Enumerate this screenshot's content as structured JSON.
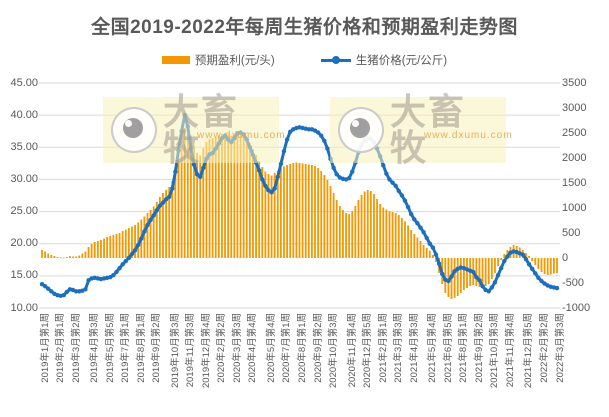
{
  "title": "全国2019-2022年每周生猪价格和预期盈利走势图",
  "legend": {
    "profit_label": "预期盈利(元/头)",
    "price_label": "生猪价格(元/公斤)"
  },
  "colors": {
    "bar_orange": "#F39800",
    "line_blue": "#1B6FBE",
    "text_gray": "#595959",
    "gridline": "#D9D9D9",
    "watermark_bg": "#F7F1B9"
  },
  "axes": {
    "left_ticks": [
      "45.00",
      "40.00",
      "35.00",
      "30.00",
      "25.00",
      "20.00",
      "15.00",
      "10.00"
    ],
    "right_ticks": [
      "3500",
      "3000",
      "2500",
      "2000",
      "1500",
      "1000",
      "500",
      "0",
      "-500",
      "-1000"
    ]
  },
  "watermark": {
    "brand": "大畜牧",
    "url": "www.dxumu.com"
  },
  "chart_data": {
    "type": "bar+line",
    "title": "全国2019-2022年每周生猪价格和预期盈利走势图",
    "x_axis": "周 (2019年1月第1周 — 2022年3月第3周)",
    "left_axis_label": "生猪价格(元/公斤)",
    "right_axis_label": "预期盈利(元/头)",
    "left_axis_range": [
      10,
      45
    ],
    "right_axis_range": [
      -1000,
      3500
    ],
    "grid": "horizontal",
    "legend_position": "top",
    "n_weeks": 167,
    "x_tick_labels": [
      "2019年1月第1周",
      "2019年2月第1周",
      "2019年3月第2周",
      "2019年4月第3周",
      "2019年5月第5周",
      "2019年7月第1周",
      "2019年8月第1周",
      "2019年9月第2周",
      "2019年10月第3周",
      "2019年11月第3周",
      "2019年12月第4周",
      "2020年2月第2周",
      "2020年3月第3周",
      "2020年4月第4周",
      "2020年5月第4周",
      "2020年7月第1周",
      "2020年8月第1周",
      "2020年9月第2周",
      "2020年10月第3周",
      "2020年11月第4周",
      "2020年12月第5周",
      "2021年2月第1周",
      "2021年3月第3周",
      "2021年4月第3周",
      "2021年5月第4周",
      "2021年6月第5周",
      "2021年8月第1周",
      "2021年9月第2周",
      "2021年10月第3周",
      "2021年11月第4周",
      "2021年12月第5周",
      "2022年2月第2周",
      "2022年3月第3周"
    ],
    "series": [
      {
        "name": "预期盈利(元/头)",
        "type": "bar",
        "axis": "right",
        "values": [
          160,
          130,
          90,
          60,
          40,
          20,
          10,
          10,
          20,
          40,
          30,
          30,
          50,
          90,
          130,
          220,
          280,
          320,
          340,
          360,
          390,
          420,
          440,
          460,
          480,
          500,
          540,
          570,
          600,
          630,
          660,
          710,
          770,
          830,
          900,
          960,
          1030,
          1120,
          1220,
          1300,
          1360,
          1420,
          1540,
          1700,
          1950,
          2250,
          2600,
          2700,
          2450,
          2250,
          2100,
          2050,
          2200,
          2320,
          2380,
          2400,
          2420,
          2450,
          2480,
          2500,
          2470,
          2440,
          2460,
          2520,
          2540,
          2500,
          2420,
          2300,
          2180,
          2060,
          1940,
          1820,
          1730,
          1680,
          1650,
          1700,
          1750,
          1800,
          1830,
          1860,
          1880,
          1900,
          1910,
          1900,
          1890,
          1880,
          1870,
          1860,
          1840,
          1800,
          1740,
          1660,
          1560,
          1440,
          1300,
          1160,
          1040,
          960,
          900,
          880,
          940,
          1040,
          1160,
          1260,
          1330,
          1360,
          1340,
          1280,
          1180,
          1080,
          1010,
          970,
          940,
          920,
          900,
          860,
          800,
          730,
          650,
          560,
          480,
          410,
          340,
          260,
          200,
          150,
          60,
          -80,
          -300,
          -520,
          -700,
          -780,
          -820,
          -800,
          -760,
          -700,
          -640,
          -600,
          -560,
          -540,
          -560,
          -580,
          -600,
          -560,
          -520,
          -420,
          -300,
          -160,
          -40,
          80,
          160,
          220,
          260,
          240,
          210,
          160,
          100,
          40,
          -60,
          -140,
          -220,
          -280,
          -320,
          -340,
          -330,
          -310,
          -300
        ]
      },
      {
        "name": "生猪价格(元/公斤)",
        "type": "line",
        "axis": "left",
        "values": [
          13.7,
          13.4,
          13.0,
          12.6,
          12.2,
          12.0,
          11.9,
          12.0,
          12.5,
          12.9,
          12.8,
          12.6,
          12.6,
          12.7,
          12.9,
          14.3,
          14.6,
          14.7,
          14.6,
          14.5,
          14.6,
          14.7,
          14.8,
          15.1,
          15.6,
          16.2,
          16.8,
          17.3,
          17.8,
          18.4,
          19.0,
          19.8,
          20.8,
          21.9,
          22.9,
          23.7,
          24.4,
          25.2,
          25.9,
          26.4,
          26.9,
          27.3,
          28.6,
          31.2,
          34.5,
          37.5,
          40.0,
          38.2,
          34.8,
          32.3,
          30.8,
          30.4,
          31.8,
          33.2,
          33.9,
          34.1,
          34.8,
          35.6,
          36.4,
          36.8,
          36.2,
          35.8,
          36.4,
          37.2,
          37.3,
          37.0,
          36.2,
          35.0,
          33.8,
          32.6,
          31.4,
          30.0,
          29.0,
          28.3,
          28.0,
          28.6,
          30.4,
          32.4,
          34.4,
          36.2,
          37.4,
          37.8,
          38.0,
          38.1,
          38.0,
          37.9,
          37.8,
          37.8,
          37.6,
          37.3,
          36.8,
          36.0,
          34.8,
          33.2,
          31.8,
          30.8,
          30.3,
          30.1,
          30.0,
          30.2,
          31.2,
          32.6,
          34.2,
          35.4,
          36.1,
          36.4,
          36.3,
          35.8,
          34.8,
          33.6,
          32.2,
          30.9,
          30.0,
          29.5,
          29.0,
          28.2,
          27.5,
          26.7,
          25.7,
          24.6,
          23.8,
          23.2,
          22.5,
          21.8,
          20.9,
          20.0,
          19.4,
          18.3,
          16.9,
          15.3,
          14.4,
          14.2,
          14.9,
          15.7,
          16.1,
          16.3,
          16.2,
          16.0,
          15.8,
          15.6,
          14.8,
          14.3,
          13.4,
          12.8,
          12.6,
          13.2,
          14.0,
          15.1,
          16.2,
          17.3,
          18.0,
          18.6,
          18.8,
          18.7,
          18.5,
          18.3,
          17.6,
          16.8,
          16.1,
          15.4,
          14.7,
          14.2,
          13.8,
          13.5,
          13.3,
          13.2,
          13.1
        ]
      }
    ]
  }
}
